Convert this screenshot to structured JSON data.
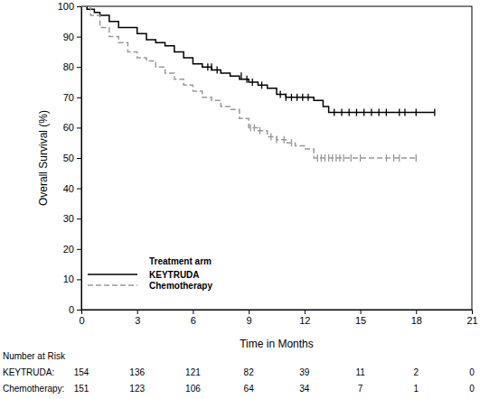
{
  "chart_data": {
    "type": "line",
    "x_label": "Time in Months",
    "y_label": "Overall Survival (%)",
    "xlim": [
      0,
      21
    ],
    "xticks": [
      0,
      3,
      6,
      9,
      12,
      15,
      18,
      21
    ],
    "ylim": [
      0,
      100
    ],
    "yticks": [
      0,
      10,
      20,
      30,
      40,
      50,
      60,
      70,
      80,
      90,
      100
    ],
    "grid": false,
    "legend": "lower left",
    "legend_title": "Treatment arm",
    "series": [
      {
        "name": "KEYTRUDA",
        "color": "#000000",
        "line_style": "solid",
        "x": [
          0,
          0.3,
          0.7,
          1,
          1.5,
          2,
          3,
          3.5,
          4,
          4.5,
          5,
          5.5,
          6,
          6.5,
          7,
          7.5,
          8,
          8.5,
          9,
          9.5,
          10,
          10.5,
          11,
          12.5,
          13,
          13.3,
          19
        ],
        "values": [
          100,
          99,
          98,
          97,
          95,
          93,
          91,
          89,
          88,
          87,
          85,
          83,
          81,
          80,
          79,
          78,
          77,
          76,
          75,
          74,
          73,
          71,
          70,
          69,
          67,
          65,
          65
        ],
        "censored": {
          "x": [
            6.8,
            7.0,
            7.3,
            8.6,
            8.9,
            9.2,
            9.7,
            10.7,
            11.0,
            11.3,
            11.6,
            11.9,
            12.2,
            13.6,
            14.0,
            14.4,
            14.8,
            15.2,
            15.6,
            16.0,
            16.4,
            17.1,
            17.4,
            18.0,
            19.0
          ],
          "values": [
            80,
            80,
            79,
            77,
            76,
            75,
            74,
            71,
            70,
            70,
            70,
            70,
            70,
            65,
            65,
            65,
            65,
            65,
            65,
            65,
            65,
            65,
            65,
            65,
            65
          ]
        }
      },
      {
        "name": "Chemotherapy",
        "color": "#999999",
        "line_style": "dashed",
        "x": [
          0,
          0.5,
          1,
          1.5,
          2,
          2.5,
          3,
          3.5,
          4,
          4.5,
          5,
          5.5,
          6,
          6.5,
          7,
          7.5,
          8,
          8.5,
          9,
          9.5,
          10,
          10.5,
          11,
          11.5,
          12,
          12.5,
          18
        ],
        "values": [
          100,
          97,
          93,
          90,
          88,
          85,
          83,
          82,
          80,
          78,
          76,
          74,
          72,
          70,
          69,
          67,
          66,
          63,
          60,
          59,
          57,
          56,
          55,
          54,
          53,
          50,
          50
        ],
        "censored": {
          "x": [
            9.1,
            9.3,
            9.6,
            10.2,
            10.5,
            10.9,
            11.3,
            12.7,
            12.9,
            13.1,
            13.3,
            13.5,
            13.7,
            13.9,
            14.1,
            14.5,
            15.0,
            16.4,
            16.8,
            17.1,
            18.0
          ],
          "values": [
            60,
            60,
            59,
            57,
            56,
            56,
            55,
            50,
            50,
            50,
            50,
            50,
            50,
            50,
            50,
            50,
            50,
            50,
            50,
            50,
            50
          ]
        }
      }
    ],
    "at_risk": {
      "title": "Number at Risk",
      "rows": [
        {
          "name": "KEYTRUDA:",
          "values": [
            154,
            136,
            121,
            82,
            39,
            11,
            2,
            0
          ]
        },
        {
          "name": "Chemotherapy:",
          "values": [
            151,
            123,
            106,
            64,
            34,
            7,
            1,
            0
          ]
        }
      ]
    }
  }
}
